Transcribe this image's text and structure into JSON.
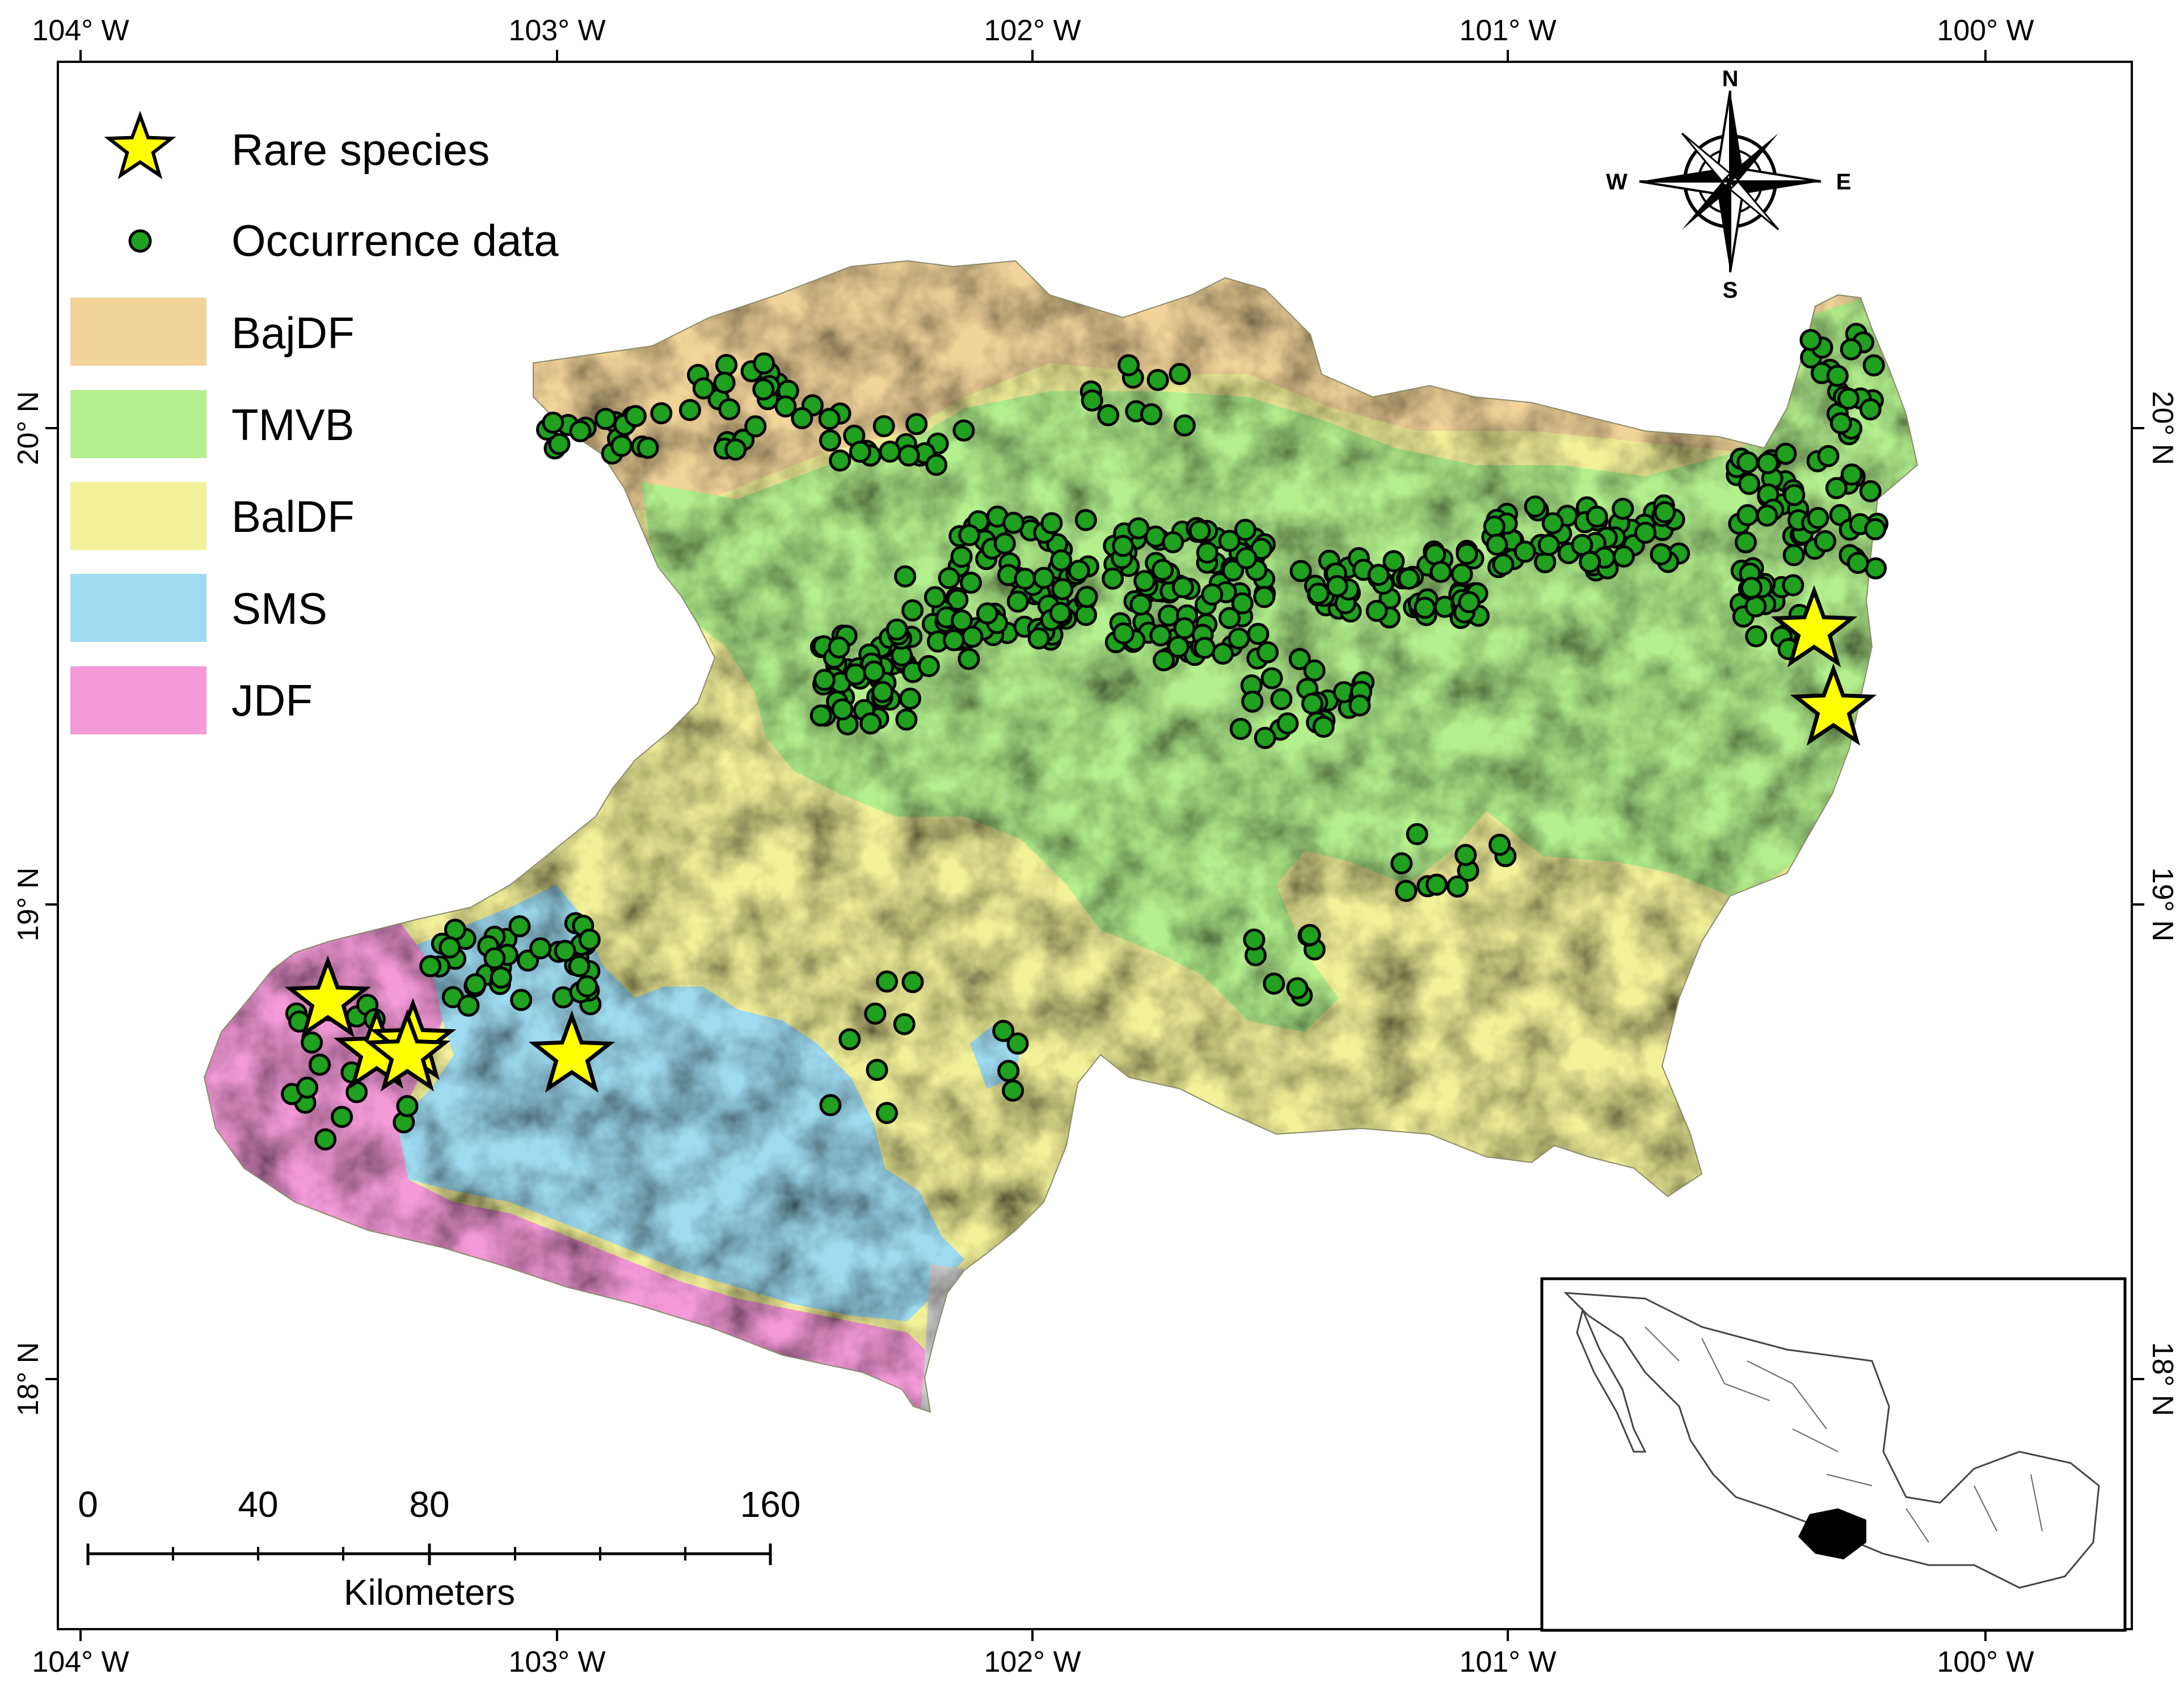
{
  "axes": {
    "longitude_labels": [
      "104° W",
      "103° W",
      "102° W",
      "101° W",
      "100° W"
    ],
    "latitude_labels": [
      "20° N",
      "19° N",
      "18° N"
    ]
  },
  "legend": {
    "rare_species": "Rare species",
    "occurrence": "Occurrence data",
    "regions": [
      {
        "label": "BajDF",
        "color": "#f2d49a"
      },
      {
        "label": "TMVB",
        "color": "#b4f08e"
      },
      {
        "label": "BalDF",
        "color": "#f3f19a"
      },
      {
        "label": "SMS",
        "color": "#9fdcf2"
      },
      {
        "label": "JDF",
        "color": "#f59ad9"
      }
    ]
  },
  "compass": {
    "n": "N",
    "s": "S",
    "e": "E",
    "w": "W"
  },
  "scale_bar": {
    "labels": [
      "0",
      "40",
      "80",
      "160"
    ],
    "unit": "Kilometers"
  },
  "colors": {
    "occurrence_fill": "#1fa01f",
    "star_fill": "#ffff00",
    "inset_highlight": "#000000"
  }
}
